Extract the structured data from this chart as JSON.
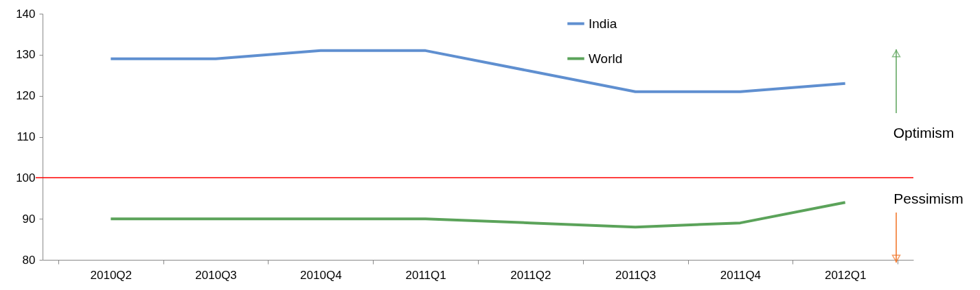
{
  "chart_data": {
    "type": "line",
    "categories": [
      "2010Q2",
      "2010Q3",
      "2010Q4",
      "2011Q1",
      "2011Q2",
      "2011Q3",
      "2011Q4",
      "2012Q1"
    ],
    "series": [
      {
        "name": "India",
        "color": "#5f8fd0",
        "values": [
          129,
          129,
          131,
          131,
          126,
          121,
          121,
          123
        ]
      },
      {
        "name": "World",
        "color": "#5ba35a",
        "values": [
          90,
          90,
          90,
          90,
          89,
          88,
          89,
          94
        ]
      }
    ],
    "ylim": [
      80,
      140
    ],
    "yticks": [
      80,
      90,
      100,
      110,
      120,
      130,
      140
    ],
    "grid": false,
    "legend": "top",
    "marker": "none",
    "line_style": "solid",
    "ref_lines": [
      {
        "axis": "y",
        "value": 100,
        "color": "#ff0000"
      }
    ],
    "annotations": [
      "Optimism",
      "Pessimism"
    ]
  }
}
